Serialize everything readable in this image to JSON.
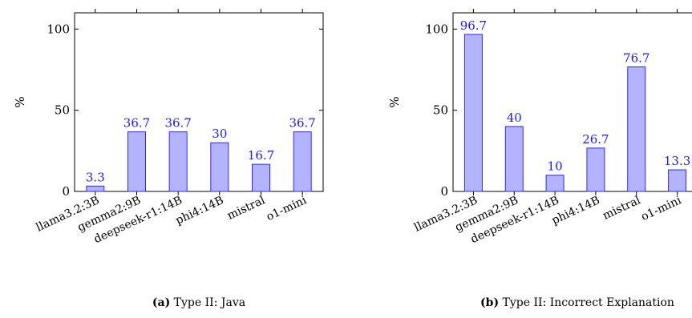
{
  "chart_data": [
    {
      "type": "bar",
      "caption_tag": "(a)",
      "caption_text": "Type II: Java",
      "ylabel": "%",
      "ylim": [
        0,
        110
      ],
      "yticks": [
        0,
        50,
        100
      ],
      "categories": [
        "llama3.2:3B",
        "gemma2:9B",
        "deepseek-r1:14B",
        "phi4:14B",
        "mistral",
        "o1-mini"
      ],
      "values": [
        3.3,
        36.7,
        36.7,
        30,
        16.7,
        36.7
      ],
      "value_labels": [
        "3.3",
        "36.7",
        "36.7",
        "30",
        "16.7",
        "36.7"
      ],
      "bar_color": "#b3b3ff",
      "bar_edge": "#2a2aff",
      "label_color": "#1a1aff"
    },
    {
      "type": "bar",
      "caption_tag": "(b)",
      "caption_text": "Type II: Incorrect Explanation",
      "ylabel": "%",
      "ylim": [
        0,
        110
      ],
      "yticks": [
        0,
        50,
        100
      ],
      "categories": [
        "llama3.2:3B",
        "gemma2:9B",
        "deepseek-r1:14B",
        "phi4:14B",
        "mistral",
        "o1-mini"
      ],
      "values": [
        96.7,
        40,
        10,
        26.7,
        76.7,
        13.3
      ],
      "value_labels": [
        "96.7",
        "40",
        "10",
        "26.7",
        "76.7",
        "13.3"
      ],
      "bar_color": "#b3b3ff",
      "bar_edge": "#2a2aff",
      "label_color": "#1a1aff"
    }
  ]
}
